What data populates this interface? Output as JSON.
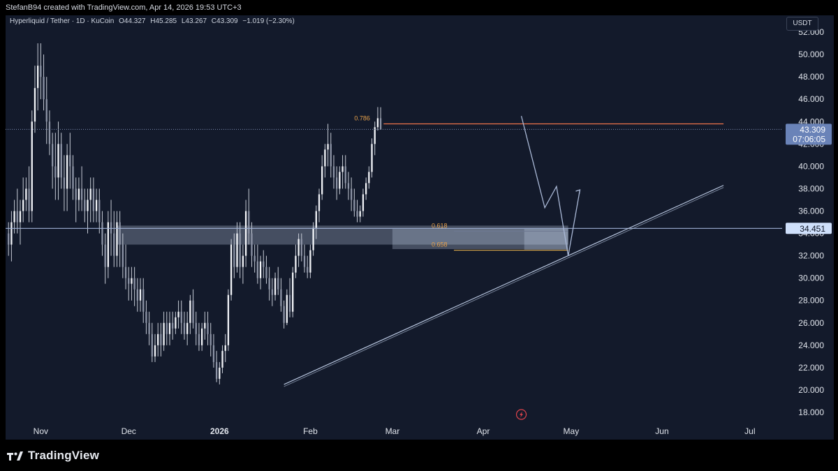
{
  "header": {
    "credit": "StefanB94 created with TradingView.com, Apr 14, 2026 19:53 UTC+3"
  },
  "legend": {
    "symbol": "Hyperliquid / Tether · 1D · KuCoin",
    "open": "O44.327",
    "high": "H45.285",
    "low": "L43.267",
    "close": "C43.309",
    "change": "−1.019 (−2.30%)"
  },
  "currency_label": "USDT",
  "footer": {
    "brand": "TradingView"
  },
  "colors": {
    "background": "#131a2b",
    "candle": "#c7ccd6",
    "fib_line": "#f0734a",
    "fib_label": "#e6a04a",
    "zone": "#c9d6ee",
    "trendline": "#b8c6df",
    "price_tag": "#6a83b8",
    "level_tag": "#cfe0fb"
  },
  "chart_data": {
    "type": "candlestick",
    "ylim": [
      17,
      53.5
    ],
    "y_ticks": [
      "18.000",
      "20.000",
      "22.000",
      "24.000",
      "26.000",
      "28.000",
      "30.000",
      "32.000",
      "34.000",
      "36.000",
      "38.000",
      "40.000",
      "42.000",
      "44.000",
      "46.000",
      "48.000",
      "50.000",
      "52.000"
    ],
    "x_ticks": [
      {
        "label": "Nov",
        "date": "2025-11-01",
        "bold": false
      },
      {
        "label": "Dec",
        "date": "2025-12-01",
        "bold": false
      },
      {
        "label": "2026",
        "date": "2026-01-01",
        "bold": true
      },
      {
        "label": "Feb",
        "date": "2026-02-01",
        "bold": false
      },
      {
        "label": "Mar",
        "date": "2026-03-01",
        "bold": false
      },
      {
        "label": "Apr",
        "date": "2026-04-01",
        "bold": false
      },
      {
        "label": "May",
        "date": "2026-05-01",
        "bold": false
      },
      {
        "label": "Jun",
        "date": "2026-06-01",
        "bold": false
      },
      {
        "label": "Jul",
        "date": "2026-07-01",
        "bold": false
      }
    ],
    "x_range": [
      "2025-10-20",
      "2026-07-12"
    ],
    "start_date": "2025-10-21",
    "candles": [
      [
        34,
        35,
        32,
        33
      ],
      [
        33,
        36,
        31.5,
        35
      ],
      [
        35,
        37,
        34,
        36
      ],
      [
        36,
        38,
        34,
        35
      ],
      [
        35,
        37,
        33,
        36
      ],
      [
        36,
        39,
        35,
        37
      ],
      [
        37,
        39,
        36,
        38
      ],
      [
        38,
        40,
        35,
        36
      ],
      [
        36,
        45,
        35,
        44
      ],
      [
        44,
        49,
        43,
        47
      ],
      [
        47,
        51,
        45,
        49
      ],
      [
        49,
        51,
        46,
        48
      ],
      [
        48,
        50,
        45,
        46
      ],
      [
        46,
        48,
        42,
        44
      ],
      [
        44,
        45,
        41,
        42
      ],
      [
        42,
        43,
        38,
        40
      ],
      [
        40,
        43,
        37,
        39
      ],
      [
        39,
        44,
        37,
        42
      ],
      [
        42,
        43,
        38,
        39
      ],
      [
        39,
        41,
        36,
        38
      ],
      [
        38,
        42,
        36,
        41
      ],
      [
        41,
        43,
        38,
        40
      ],
      [
        40,
        41,
        37,
        38
      ],
      [
        38,
        39,
        35,
        37
      ],
      [
        37,
        39,
        36,
        38
      ],
      [
        38,
        40,
        36,
        37
      ],
      [
        37,
        38,
        35,
        36
      ],
      [
        36,
        38,
        34,
        37
      ],
      [
        37,
        39,
        35,
        38
      ],
      [
        38,
        39,
        35,
        36
      ],
      [
        36,
        38,
        35,
        37
      ],
      [
        37,
        38,
        34,
        35
      ],
      [
        35,
        36,
        32,
        33
      ],
      [
        33,
        34,
        29.5,
        31
      ],
      [
        31,
        36,
        30,
        35
      ],
      [
        35,
        37,
        32,
        34
      ],
      [
        34,
        36,
        31,
        32
      ],
      [
        32,
        36,
        31,
        35
      ],
      [
        35,
        36,
        31,
        33
      ],
      [
        33,
        34,
        30,
        31
      ],
      [
        31,
        33,
        29,
        30
      ],
      [
        30,
        31,
        28,
        29.5
      ],
      [
        29.5,
        31,
        28,
        30
      ],
      [
        30,
        31,
        27.5,
        29
      ],
      [
        29,
        30,
        27,
        28
      ],
      [
        28,
        30,
        27,
        29
      ],
      [
        29,
        30,
        26,
        27
      ],
      [
        27,
        28,
        25,
        26
      ],
      [
        26,
        27,
        24,
        25
      ],
      [
        25,
        26,
        22.5,
        23
      ],
      [
        23,
        25,
        22.5,
        24
      ],
      [
        24,
        26,
        23,
        25
      ],
      [
        25,
        26,
        23,
        24
      ],
      [
        24,
        27,
        23.5,
        26
      ],
      [
        26,
        27,
        24,
        25
      ],
      [
        25,
        27,
        24,
        26
      ],
      [
        26,
        27,
        24.5,
        25.5
      ],
      [
        25.5,
        27,
        25,
        26.5
      ],
      [
        26.5,
        28,
        25.5,
        27
      ],
      [
        27,
        28,
        25,
        26
      ],
      [
        26,
        27,
        24.5,
        25
      ],
      [
        25,
        27,
        24,
        26
      ],
      [
        26,
        28.5,
        25,
        28
      ],
      [
        28,
        29,
        25.5,
        26
      ],
      [
        26,
        27,
        24,
        25
      ],
      [
        25,
        26,
        23.5,
        24
      ],
      [
        24,
        26,
        23.5,
        25.5
      ],
      [
        25.5,
        27,
        24.5,
        26
      ],
      [
        26,
        27,
        24,
        25
      ],
      [
        25,
        26,
        23,
        24
      ],
      [
        24,
        25,
        22,
        22.5
      ],
      [
        22.5,
        23.5,
        20.7,
        21
      ],
      [
        21,
        22.5,
        20.5,
        22
      ],
      [
        22,
        24,
        21.5,
        23.5
      ],
      [
        23.5,
        25,
        22.5,
        24
      ],
      [
        24,
        29,
        23.5,
        28.5
      ],
      [
        28.5,
        33.5,
        28,
        33
      ],
      [
        33,
        34,
        30,
        31
      ],
      [
        31,
        35,
        30.5,
        34
      ],
      [
        34,
        35,
        30,
        31
      ],
      [
        31,
        33,
        29.5,
        32
      ],
      [
        32,
        37,
        31,
        36
      ],
      [
        36,
        38,
        33,
        34
      ],
      [
        34,
        35,
        31,
        32
      ],
      [
        32,
        33,
        30.5,
        31.5
      ],
      [
        31.5,
        33,
        29.5,
        30
      ],
      [
        30,
        32,
        29,
        31.5
      ],
      [
        31.5,
        32.5,
        30,
        31
      ],
      [
        31,
        32,
        29.5,
        30
      ],
      [
        30,
        31,
        28,
        29
      ],
      [
        29,
        30,
        27.5,
        28.5
      ],
      [
        28.5,
        30.5,
        28,
        30
      ],
      [
        30,
        31,
        28.5,
        29
      ],
      [
        29,
        30,
        27,
        27.5
      ],
      [
        27.5,
        28,
        25.5,
        26
      ],
      [
        26,
        29,
        25.8,
        28.5
      ],
      [
        28.5,
        30,
        26.5,
        27
      ],
      [
        27,
        31,
        26.5,
        30.5
      ],
      [
        30.5,
        33,
        30,
        32
      ],
      [
        32,
        34,
        31,
        33.5
      ],
      [
        33.5,
        34,
        31.5,
        32
      ],
      [
        32,
        33,
        30.5,
        31
      ],
      [
        31,
        32,
        30,
        30.5
      ],
      [
        30.5,
        33,
        30,
        32.5
      ],
      [
        32.5,
        35,
        32,
        34.5
      ],
      [
        34.5,
        36.5,
        33.5,
        36
      ],
      [
        36,
        38,
        35,
        37.5
      ],
      [
        37.5,
        41,
        37,
        40
      ],
      [
        40,
        42,
        39,
        41.5
      ],
      [
        41.5,
        43.8,
        40,
        42
      ],
      [
        42,
        43,
        39,
        40
      ],
      [
        40,
        41,
        38,
        39
      ],
      [
        39,
        40,
        37,
        38
      ],
      [
        38,
        40,
        37.5,
        39.5
      ],
      [
        39.5,
        41,
        38,
        40
      ],
      [
        40,
        41,
        38,
        38.5
      ],
      [
        38.5,
        39.5,
        37,
        38
      ],
      [
        38,
        39,
        36,
        37
      ],
      [
        37,
        38,
        35.5,
        36
      ],
      [
        36,
        37,
        35,
        35.5
      ],
      [
        35.5,
        36.5,
        35,
        36
      ],
      [
        36,
        38,
        35.5,
        37.5
      ],
      [
        37.5,
        39,
        37,
        38.5
      ],
      [
        38.5,
        40,
        38,
        39.5
      ],
      [
        39.5,
        42.5,
        39,
        42
      ],
      [
        42,
        44,
        41,
        43.5
      ],
      [
        43.5,
        45.3,
        43.2,
        44.3
      ],
      [
        44.3,
        45.285,
        43.267,
        43.309
      ]
    ],
    "fib_levels": [
      {
        "label": "0.786",
        "value": 43.8
      },
      {
        "label": "0.618",
        "value": 34.2
      },
      {
        "label": "0.658",
        "value": 32.5
      }
    ],
    "zones": [
      {
        "from": "2025-11-27",
        "to": "2026-04-30",
        "low": 33.0,
        "high": 34.7
      },
      {
        "from": "2026-03-01",
        "to": "2026-04-30",
        "low": 32.6,
        "high": 34.4
      },
      {
        "from": "2026-04-15",
        "to": "2026-04-30",
        "low": 32.5,
        "high": 34.4
      }
    ],
    "trendline": {
      "from": {
        "date": "2026-01-23",
        "value": 20.5
      },
      "to": {
        "date": "2026-06-22",
        "value": 38.3
      }
    },
    "horizontal_line": {
      "value": 34.451,
      "label": "34.451"
    },
    "last_price": {
      "value": 43.309,
      "label": "43.309",
      "countdown": "07:06:05"
    },
    "projection": [
      {
        "date": "2026-04-14",
        "value": 44.5
      },
      {
        "date": "2026-04-22",
        "value": 36.3
      },
      {
        "date": "2026-04-26",
        "value": 38.2
      },
      {
        "date": "2026-04-30",
        "value": 32.0
      },
      {
        "date": "2026-05-04",
        "value": 37.9
      }
    ]
  }
}
